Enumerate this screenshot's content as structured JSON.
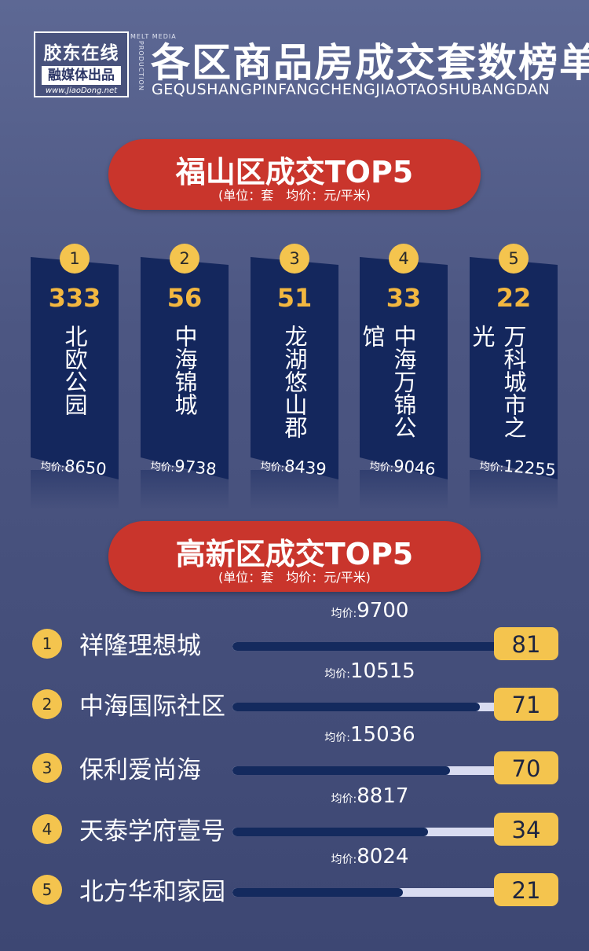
{
  "header": {
    "logo_main": "胶东在线",
    "logo_sub": "融媒体出品",
    "logo_url": "www.JiaoDong.net",
    "melt_media": "MELT MEDIA",
    "production": "PRODUCTION",
    "title": "各区商品房成交套数榜单",
    "pinyin": "GEQUSHANGPINFANGCHENGJIAOTAOSHUBANGDAN"
  },
  "fushan": {
    "title": "福山区成交TOP5",
    "unit": "(单位：套　均价：元/平米)",
    "items": [
      {
        "rank": "1",
        "count": "333",
        "name": "北欧公园",
        "price_label": "均价:",
        "price": "8650"
      },
      {
        "rank": "2",
        "count": "56",
        "name": "中海锦城",
        "price_label": "均价:",
        "price": "9738"
      },
      {
        "rank": "3",
        "count": "51",
        "name": "龙湖悠山郡",
        "price_label": "均价:",
        "price": "8439"
      },
      {
        "rank": "4",
        "count": "33",
        "name": "中海万锦公馆",
        "price_label": "均价:",
        "price": "9046"
      },
      {
        "rank": "5",
        "count": "22",
        "name": "万科城市之光",
        "price_label": "均价:",
        "price": "12255"
      }
    ]
  },
  "gaoxin": {
    "title": "高新区成交TOP5",
    "unit": "(单位：套　均价：元/平米)",
    "items": [
      {
        "rank": "1",
        "name": "祥隆理想城",
        "price_label": "均价:",
        "price": "9700",
        "count": "81",
        "bar_fill": 1.0
      },
      {
        "rank": "2",
        "name": "中海国际社区",
        "price_label": "均价:",
        "price": "10515",
        "count": "71",
        "bar_fill": 0.9
      },
      {
        "rank": "3",
        "name": "保利爱尚海",
        "price_label": "均价:",
        "price": "15036",
        "count": "70",
        "bar_fill": 0.79
      },
      {
        "rank": "4",
        "name": "天泰学府壹号",
        "price_label": "均价:",
        "price": "8817",
        "count": "34",
        "bar_fill": 0.71
      },
      {
        "rank": "5",
        "name": "北方华和家园",
        "price_label": "均价:",
        "price": "8024",
        "count": "21",
        "bar_fill": 0.62
      }
    ]
  },
  "colors": {
    "pill": "#c9352c",
    "card": "#14275d",
    "badge": "#f4c44e",
    "count_text": "#f2b740",
    "bar_fill": "#142a5e",
    "bar_track": "#d9dcf1"
  }
}
